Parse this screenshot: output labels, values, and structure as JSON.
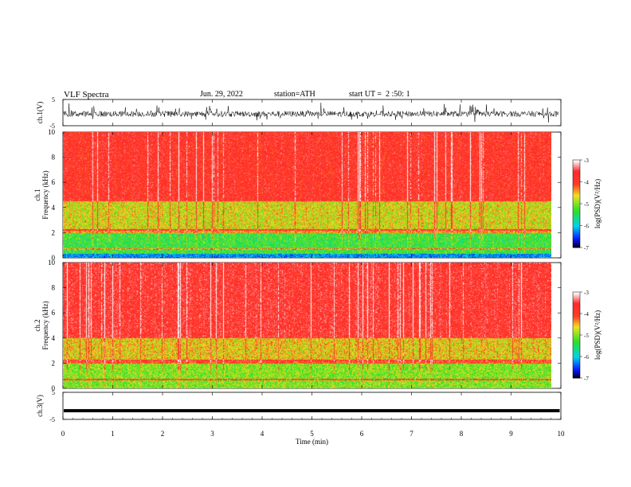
{
  "header": {
    "title": "VLF Spectra",
    "date": "Jun. 29, 2022",
    "station": "station=ATH",
    "start": "start UT =  2 :50: 1"
  },
  "colorbars": [
    {
      "label": "log(PSD)(V²/Hz)",
      "ticks": [
        "-3",
        "-4",
        "-5",
        "-6",
        "-7"
      ]
    },
    {
      "label": "log(PSD)(V²/Hz)",
      "ticks": [
        "-3",
        "-4",
        "-5",
        "-6",
        "-7"
      ]
    }
  ],
  "colors": {
    "high": "#ff3030",
    "mid": "#f0e020",
    "low": "#30e030",
    "cyan": "#00d8e8",
    "blue": "#1030ff",
    "black": "#000000"
  },
  "chart_data": [
    {
      "type": "line",
      "panel": "ch.1",
      "ylabel": "ch.1(V)",
      "yticks": [
        "5",
        "-5"
      ],
      "ylim": [
        -5,
        5
      ],
      "xlim": [
        0,
        10
      ],
      "series": [
        {
          "values_summary": "noisy waveform centered near -0.5 V with spikes reaching about +2.5 / -3 V"
        }
      ]
    },
    {
      "type": "heatmap",
      "panel": "ch.1",
      "ylabel": "ch.1\nFrequency (kHz)",
      "yticks": [
        "0",
        "2",
        "4",
        "6",
        "8",
        "10"
      ],
      "ylim": [
        0,
        10
      ],
      "xlim": [
        0,
        9.8
      ],
      "colorbar_range": [
        -7,
        -3
      ],
      "bands": [
        {
          "f_min": 0,
          "f_max": 0.3,
          "level": -6.5
        },
        {
          "f_min": 0.3,
          "f_max": 2.2,
          "level": -5.3
        },
        {
          "f_min": 2.2,
          "f_max": 4.5,
          "level": -4.7
        },
        {
          "f_min": 4.5,
          "f_max": 10,
          "level": -3.8
        }
      ]
    },
    {
      "type": "heatmap",
      "panel": "ch.2",
      "ylabel": "ch.2\nFrequency (kHz)",
      "yticks": [
        "0",
        "2",
        "4",
        "6",
        "8",
        "10"
      ],
      "ylim": [
        0,
        10
      ],
      "xlim": [
        0,
        9.8
      ],
      "colorbar_range": [
        -7,
        -3
      ],
      "bands": [
        {
          "f_min": 0,
          "f_max": 2.2,
          "level": -5.0
        },
        {
          "f_min": 2.2,
          "f_max": 4.0,
          "level": -4.6
        },
        {
          "f_min": 4.0,
          "f_max": 10,
          "level": -3.7
        }
      ]
    },
    {
      "type": "line",
      "panel": "ch.3",
      "ylabel": "ch.3(V)",
      "yticks": [
        "5",
        "-5"
      ],
      "ylim": [
        -5,
        5
      ],
      "xlim": [
        0,
        10
      ],
      "series": [
        {
          "values_summary": "flat thick trace near -1.8 V"
        }
      ]
    }
  ],
  "xaxis": {
    "label": "Time (min)",
    "ticks": [
      "0",
      "1",
      "2",
      "3",
      "4",
      "5",
      "6",
      "7",
      "8",
      "9",
      "10"
    ],
    "range": [
      0,
      10
    ]
  }
}
